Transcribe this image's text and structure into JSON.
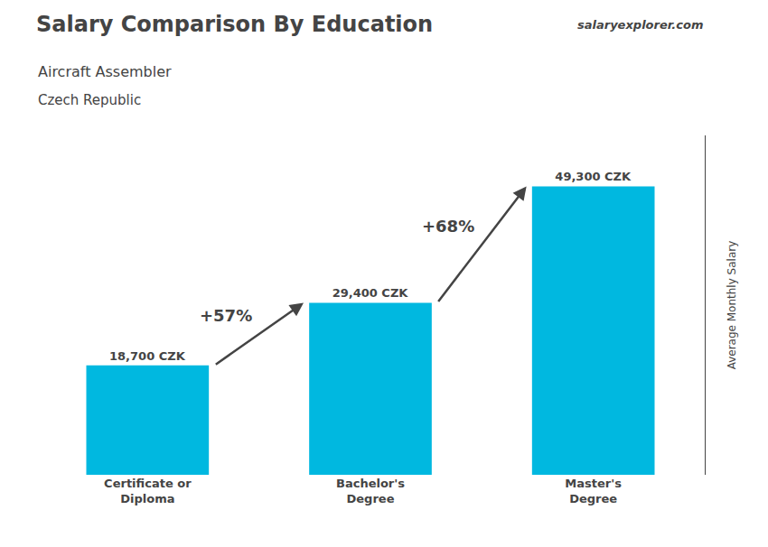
{
  "chart_data": {
    "type": "bar",
    "title": "Salary Comparison By Education",
    "subtitle": "Aircraft Assembler",
    "ylabel": "Average Monthly Salary",
    "categories": [
      "Certificate or\nDiploma",
      "Bachelor's\nDegree",
      "Master's\nDegree"
    ],
    "values": [
      18700,
      29400,
      49300
    ],
    "value_labels": [
      "18,700 CZK",
      "29,400 CZK",
      "49,300 CZK"
    ],
    "data_labels": true,
    "color": "#00b8e0",
    "ylim": [
      0,
      58000
    ],
    "tick_labels": "x",
    "grid": false,
    "annotations": [
      {
        "text": "Czech Republic"
      },
      {
        "text": "salaryexplorer.com"
      },
      {
        "text": "+57%",
        "from": "Certificate or\nDiploma",
        "to": "Bachelor's\nDegree"
      },
      {
        "text": "+68%",
        "from": "Bachelor's\nDegree",
        "to": "Master's\nDegree"
      }
    ]
  }
}
